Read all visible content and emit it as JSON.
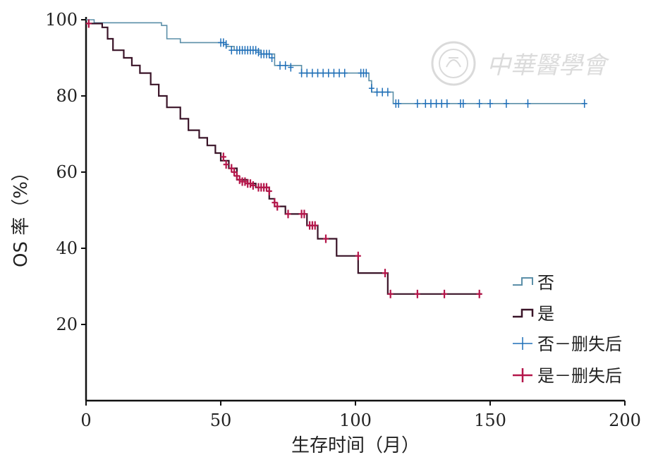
{
  "chart_data": {
    "type": "line",
    "xlabel": "生存时间（月）",
    "ylabel": "OS 率（%）",
    "xlim": [
      0,
      200
    ],
    "ylim": [
      0,
      100
    ],
    "x_ticks": [
      "0",
      "50",
      "100",
      "150",
      "200"
    ],
    "y_ticks": [
      "20",
      "40",
      "60",
      "80",
      "100"
    ],
    "x_tick_values": [
      0,
      50,
      100,
      150,
      200
    ],
    "y_tick_values": [
      20,
      40,
      60,
      80,
      100
    ],
    "grid": false,
    "legend_position": "bottom-right",
    "legend": [
      "否",
      "是",
      "否－删失后",
      "是－删失后"
    ],
    "series": [
      {
        "name": "否",
        "color": "#5b8fa8",
        "censor_color": "#1f6fb8",
        "steps": [
          [
            0,
            100
          ],
          [
            3,
            99.2
          ],
          [
            28,
            98.5
          ],
          [
            30,
            95
          ],
          [
            35,
            94
          ],
          [
            52,
            93
          ],
          [
            55,
            92
          ],
          [
            65,
            91
          ],
          [
            70,
            88
          ],
          [
            80,
            86
          ],
          [
            105,
            84
          ],
          [
            106,
            81
          ],
          [
            114,
            78
          ],
          [
            186,
            78
          ]
        ],
        "censored": [
          [
            50,
            94
          ],
          [
            51,
            94
          ],
          [
            52,
            93.5
          ],
          [
            54,
            92
          ],
          [
            56,
            92
          ],
          [
            57,
            92
          ],
          [
            58,
            92
          ],
          [
            59,
            92
          ],
          [
            60,
            92
          ],
          [
            61,
            92
          ],
          [
            62,
            92
          ],
          [
            63,
            92
          ],
          [
            64,
            91.5
          ],
          [
            65,
            91
          ],
          [
            66,
            91
          ],
          [
            67,
            91
          ],
          [
            68,
            91
          ],
          [
            69,
            90
          ],
          [
            72,
            88
          ],
          [
            74,
            88
          ],
          [
            76,
            87.5
          ],
          [
            80,
            86
          ],
          [
            82,
            86
          ],
          [
            84,
            86
          ],
          [
            86,
            86
          ],
          [
            88,
            86
          ],
          [
            90,
            86
          ],
          [
            92,
            86
          ],
          [
            94,
            86
          ],
          [
            96,
            86
          ],
          [
            102,
            86
          ],
          [
            103,
            86
          ],
          [
            104,
            86
          ],
          [
            106,
            82
          ],
          [
            108,
            81
          ],
          [
            110,
            81
          ],
          [
            112,
            81
          ],
          [
            115,
            78
          ],
          [
            116,
            78
          ],
          [
            123,
            78
          ],
          [
            126,
            78
          ],
          [
            128,
            78
          ],
          [
            130,
            78
          ],
          [
            132,
            78
          ],
          [
            134,
            78
          ],
          [
            139,
            78
          ],
          [
            140,
            78
          ],
          [
            146,
            78
          ],
          [
            150,
            78
          ],
          [
            156,
            78
          ],
          [
            164,
            78
          ],
          [
            185,
            78
          ]
        ]
      },
      {
        "name": "是",
        "color": "#3a1428",
        "censor_color": "#b4164a",
        "steps": [
          [
            0,
            99
          ],
          [
            6,
            98
          ],
          [
            8,
            95
          ],
          [
            10,
            92
          ],
          [
            14,
            90
          ],
          [
            17,
            88
          ],
          [
            20,
            86
          ],
          [
            24,
            83
          ],
          [
            27,
            80
          ],
          [
            30,
            77
          ],
          [
            35,
            74
          ],
          [
            38,
            71
          ],
          [
            42,
            69
          ],
          [
            45,
            67
          ],
          [
            48,
            65
          ],
          [
            50,
            63
          ],
          [
            53,
            61
          ],
          [
            56,
            58
          ],
          [
            60,
            57
          ],
          [
            63,
            56
          ],
          [
            68,
            53
          ],
          [
            70,
            51
          ],
          [
            74,
            49
          ],
          [
            82,
            46
          ],
          [
            86,
            42.5
          ],
          [
            93,
            38
          ],
          [
            101,
            33.5
          ],
          [
            112,
            28
          ],
          [
            147,
            28
          ]
        ],
        "censored": [
          [
            1,
            99
          ],
          [
            51,
            64
          ],
          [
            52,
            62
          ],
          [
            54,
            61
          ],
          [
            55,
            60
          ],
          [
            56,
            59
          ],
          [
            57,
            58
          ],
          [
            58,
            57.5
          ],
          [
            59,
            57.5
          ],
          [
            60,
            57
          ],
          [
            61,
            57
          ],
          [
            62,
            56.5
          ],
          [
            64,
            56
          ],
          [
            65,
            56
          ],
          [
            66,
            56
          ],
          [
            67,
            56
          ],
          [
            68,
            55
          ],
          [
            70,
            52
          ],
          [
            71,
            51
          ],
          [
            75,
            49
          ],
          [
            80,
            49
          ],
          [
            81,
            49
          ],
          [
            83,
            46
          ],
          [
            84,
            46
          ],
          [
            85,
            46
          ],
          [
            89,
            42.5
          ],
          [
            101,
            38
          ],
          [
            111,
            33.5
          ],
          [
            113,
            28
          ],
          [
            123,
            28
          ],
          [
            133,
            28
          ],
          [
            146,
            28
          ]
        ]
      }
    ]
  },
  "watermark": {
    "text": "中華醫學會"
  }
}
